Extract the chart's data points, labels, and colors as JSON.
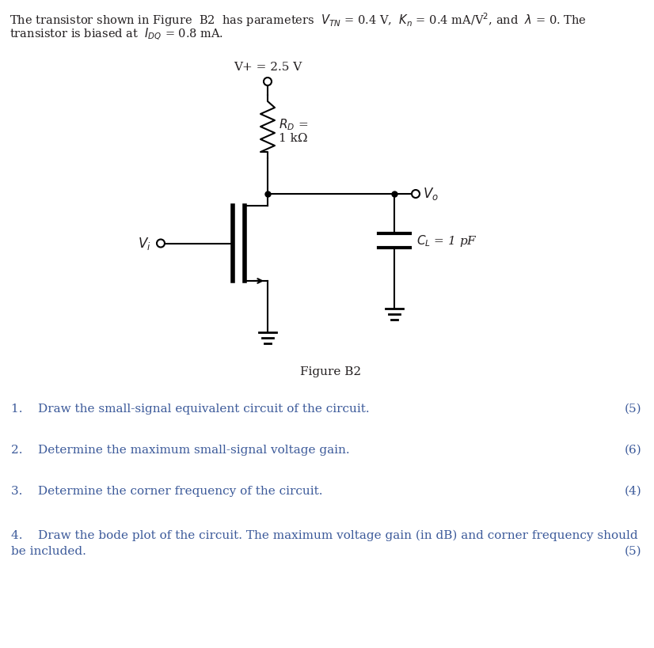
{
  "bg_color": "#ffffff",
  "text_color": "#231f20",
  "blue_color": "#3c5a9a",
  "header_line1": "The transistor shown in Figure  B2  has parameters  $V_{TN}$ = 0.4 V,  $K_n$ = 0.4 mA/V$^2$, and  $\\lambda$ = 0. The",
  "header_line2": "transistor is biased at  $I_{DQ}$ = 0.8 mA.",
  "vplus_label": "V+ = 2.5 V",
  "rd_label1": "$R_D$ =",
  "rd_label2": "1 kΩ",
  "vo_label": "$V_o$",
  "vi_label": "$V_i$",
  "cl_label": "$C_L$ = 1 pF",
  "fig_label": "Figure B2",
  "q1_text": "1.    Draw the small-signal equivalent circuit of the circuit.",
  "q1_marks": "(5)",
  "q2_text": "2.    Determine the maximum small-signal voltage gain.",
  "q2_marks": "(6)",
  "q3_text": "3.    Determine the corner frequency of the circuit.",
  "q3_marks": "(4)",
  "q4_line1": "4.    Draw the bode plot of the circuit. The maximum voltage gain (in dB) and corner frequency should",
  "q4_line2": "be included.",
  "q4_marks": "(5)"
}
